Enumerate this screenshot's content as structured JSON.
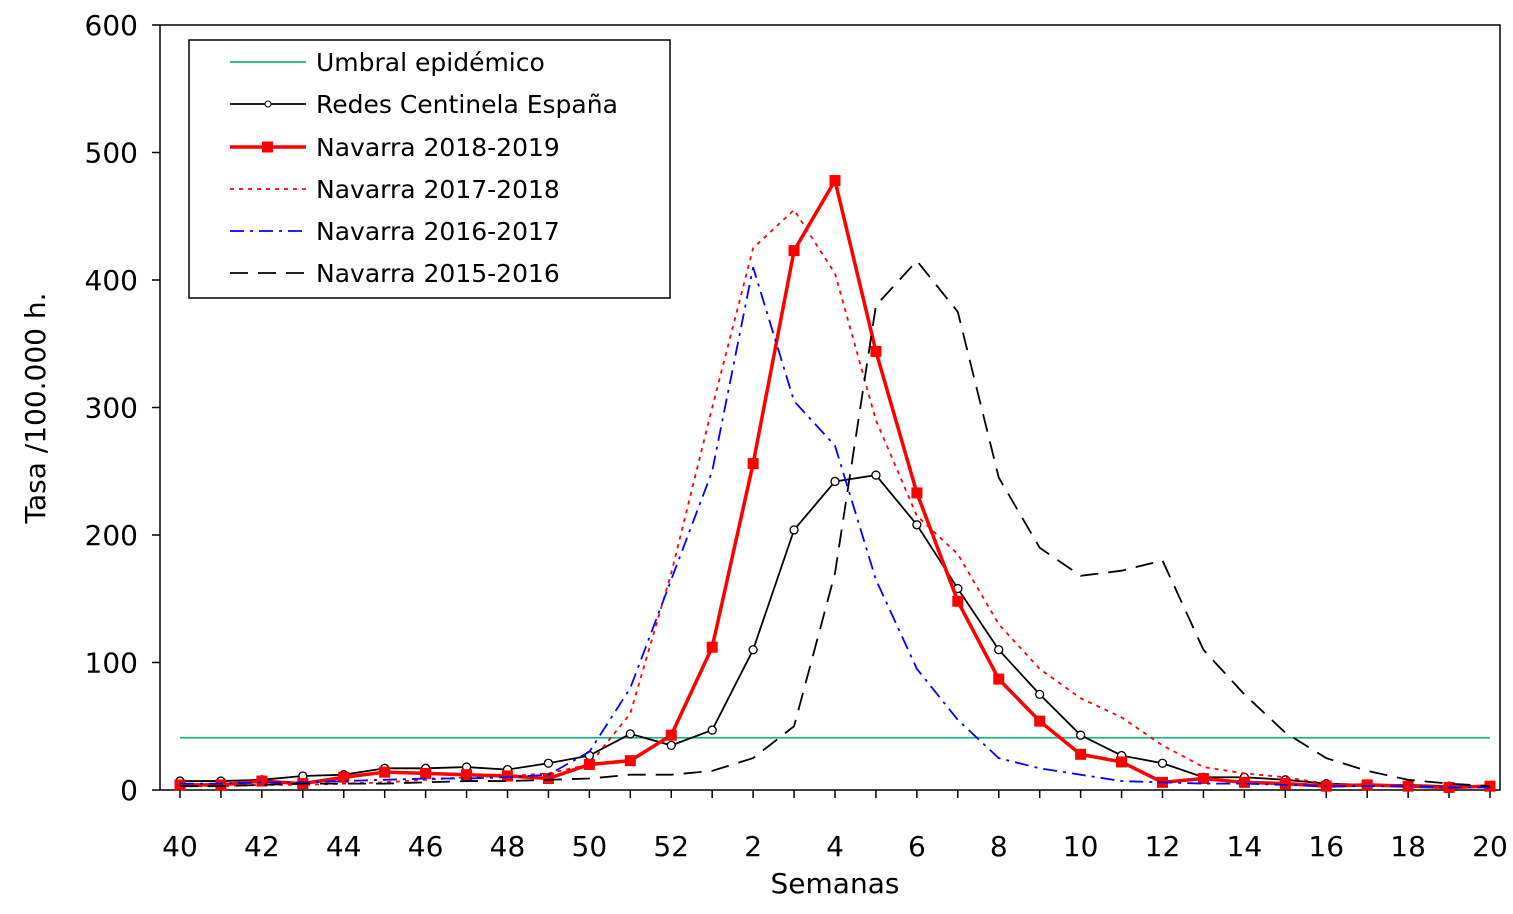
{
  "chart_data": {
    "type": "line",
    "xlabel": "Semanas",
    "ylabel": "Tasa /100.000 h.",
    "categories": [
      "40",
      null,
      "42",
      null,
      "44",
      null,
      "46",
      null,
      "48",
      null,
      "50",
      null,
      "52",
      null,
      "2",
      null,
      "4",
      null,
      "6",
      null,
      "8",
      null,
      "10",
      null,
      "12",
      null,
      "14",
      null,
      "16",
      null,
      "18",
      null,
      "20"
    ],
    "ylim": [
      0,
      600
    ],
    "yticks": [
      0,
      100,
      200,
      300,
      400,
      500,
      600
    ],
    "legend": "upper-left",
    "series": [
      {
        "name": "Umbral epidémico",
        "color": "#1fb38a",
        "dash": "solid",
        "marker": "none",
        "values": [
          41,
          41,
          41,
          41,
          41,
          41,
          41,
          41,
          41,
          41,
          41,
          41,
          41,
          41,
          41,
          41,
          41,
          41,
          41,
          41,
          41,
          41,
          41,
          41,
          41,
          41,
          41,
          41,
          41,
          41,
          41,
          41,
          41
        ]
      },
      {
        "name": "Redes Centinela España",
        "color": "#000000",
        "dash": "solid",
        "marker": "circle",
        "values": [
          7,
          7,
          8,
          11,
          12,
          17,
          17,
          18,
          16,
          21,
          27,
          44,
          35,
          47,
          110,
          204,
          242,
          247,
          208,
          158,
          110,
          75,
          43,
          27,
          21,
          10,
          10,
          8,
          5,
          4,
          4,
          3,
          3
        ]
      },
      {
        "name": "Navarra 2018-2019",
        "color": "#ff0000",
        "dash": "solid",
        "marker": "square",
        "values": [
          4,
          4,
          7,
          5,
          10,
          14,
          13,
          12,
          11,
          9,
          20,
          23,
          43,
          112,
          256,
          423,
          478,
          344,
          233,
          148,
          87,
          54,
          28,
          22,
          6,
          9,
          6,
          5,
          3,
          4,
          3,
          2,
          3
        ]
      },
      {
        "name": "Navarra 2017-2018",
        "color": "#ff0000",
        "dash": "dotted",
        "marker": "none",
        "values": [
          3,
          3,
          4,
          4,
          5,
          6,
          8,
          10,
          11,
          13,
          20,
          60,
          170,
          300,
          425,
          455,
          405,
          290,
          215,
          185,
          130,
          95,
          72,
          57,
          35,
          18,
          13,
          10,
          5,
          4,
          3,
          3,
          2
        ]
      },
      {
        "name": "Navarra 2016-2017",
        "color": "#0000ff",
        "dash": "dashdot",
        "marker": "none",
        "values": [
          5,
          5,
          6,
          6,
          7,
          8,
          9,
          9,
          10,
          12,
          30,
          80,
          165,
          250,
          410,
          305,
          270,
          165,
          95,
          55,
          25,
          17,
          12,
          7,
          6,
          5,
          5,
          4,
          3,
          3,
          3,
          2,
          2
        ]
      },
      {
        "name": "Navarra 2015-2016",
        "color": "#000000",
        "dash": "longdash",
        "marker": "none",
        "values": [
          3,
          3,
          4,
          5,
          5,
          5,
          6,
          7,
          7,
          8,
          9,
          12,
          12,
          15,
          25,
          50,
          170,
          380,
          415,
          375,
          245,
          190,
          168,
          172,
          180,
          110,
          75,
          45,
          25,
          15,
          8,
          5,
          3
        ]
      }
    ]
  }
}
